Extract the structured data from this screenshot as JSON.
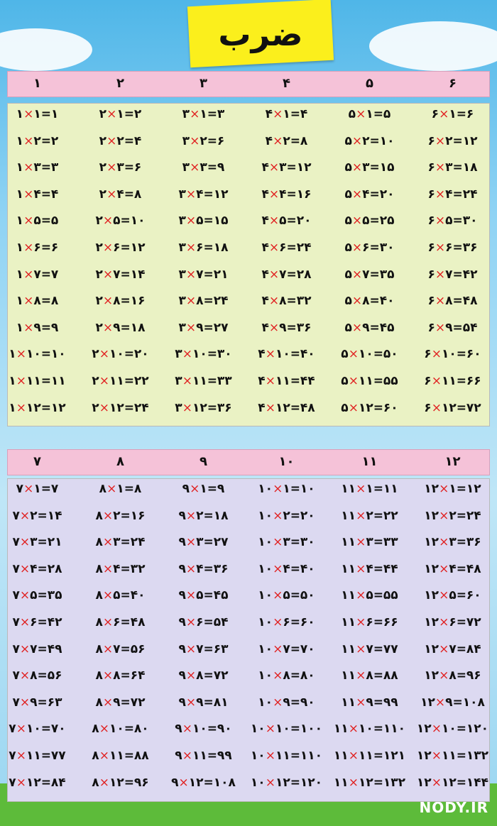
{
  "header": {
    "title": "ضرب"
  },
  "tables": [
    {
      "header": [
        "۱",
        "۲",
        "۳",
        "۴",
        "۵",
        "۶"
      ],
      "rows": [
        [
          "۱×۱=۱",
          "۲×۱=۲",
          "۳×۱=۳",
          "۴×۱=۴",
          "۵×۱=۵",
          "۶×۱=۶"
        ],
        [
          "۱×۲=۲",
          "۲×۲=۴",
          "۳×۲=۶",
          "۴×۲=۸",
          "۵×۲=۱۰",
          "۶×۲=۱۲"
        ],
        [
          "۱×۳=۳",
          "۲×۳=۶",
          "۳×۳=۹",
          "۴×۳=۱۲",
          "۵×۳=۱۵",
          "۶×۳=۱۸"
        ],
        [
          "۱×۴=۴",
          "۲×۴=۸",
          "۳×۴=۱۲",
          "۴×۴=۱۶",
          "۵×۴=۲۰",
          "۶×۴=۲۴"
        ],
        [
          "۱×۵=۵",
          "۲×۵=۱۰",
          "۳×۵=۱۵",
          "۴×۵=۲۰",
          "۵×۵=۲۵",
          "۶×۵=۳۰"
        ],
        [
          "۱×۶=۶",
          "۲×۶=۱۲",
          "۳×۶=۱۸",
          "۴×۶=۲۴",
          "۵×۶=۳۰",
          "۶×۶=۳۶"
        ],
        [
          "۱×۷=۷",
          "۲×۷=۱۴",
          "۳×۷=۲۱",
          "۴×۷=۲۸",
          "۵×۷=۳۵",
          "۶×۷=۴۲"
        ],
        [
          "۱×۸=۸",
          "۲×۸=۱۶",
          "۳×۸=۲۴",
          "۴×۸=۳۲",
          "۵×۸=۴۰",
          "۶×۸=۴۸"
        ],
        [
          "۱×۹=۹",
          "۲×۹=۱۸",
          "۳×۹=۲۷",
          "۴×۹=۳۶",
          "۵×۹=۴۵",
          "۶×۹=۵۴"
        ],
        [
          "۱×۱۰=۱۰",
          "۲×۱۰=۲۰",
          "۳×۱۰=۳۰",
          "۴×۱۰=۴۰",
          "۵×۱۰=۵۰",
          "۶×۱۰=۶۰"
        ],
        [
          "۱×۱۱=۱۱",
          "۲×۱۱=۲۲",
          "۳×۱۱=۳۳",
          "۴×۱۱=۴۴",
          "۵×۱۱=۵۵",
          "۶×۱۱=۶۶"
        ],
        [
          "۱×۱۲=۱۲",
          "۲×۱۲=۲۴",
          "۳×۱۲=۳۶",
          "۴×۱۲=۴۸",
          "۵×۱۲=۶۰",
          "۶×۱۲=۷۲"
        ]
      ]
    },
    {
      "header": [
        "۷",
        "۸",
        "۹",
        "۱۰",
        "۱۱",
        "۱۲"
      ],
      "rows": [
        [
          "۷×۱=۷",
          "۸×۱=۸",
          "۹×۱=۹",
          "۱۰×۱=۱۰",
          "۱۱×۱=۱۱",
          "۱۲×۱=۱۲"
        ],
        [
          "۷×۲=۱۴",
          "۸×۲=۱۶",
          "۹×۲=۱۸",
          "۱۰×۲=۲۰",
          "۱۱×۲=۲۲",
          "۱۲×۲=۲۴"
        ],
        [
          "۷×۳=۲۱",
          "۸×۳=۲۴",
          "۹×۳=۲۷",
          "۱۰×۳=۳۰",
          "۱۱×۳=۳۳",
          "۱۲×۳=۳۶"
        ],
        [
          "۷×۴=۲۸",
          "۸×۴=۳۲",
          "۹×۴=۳۶",
          "۱۰×۴=۴۰",
          "۱۱×۴=۴۴",
          "۱۲×۴=۴۸"
        ],
        [
          "۷×۵=۳۵",
          "۸×۵=۴۰",
          "۹×۵=۴۵",
          "۱۰×۵=۵۰",
          "۱۱×۵=۵۵",
          "۱۲×۵=۶۰"
        ],
        [
          "۷×۶=۴۲",
          "۸×۶=۴۸",
          "۹×۶=۵۴",
          "۱۰×۶=۶۰",
          "۱۱×۶=۶۶",
          "۱۲×۶=۷۲"
        ],
        [
          "۷×۷=۴۹",
          "۸×۷=۵۶",
          "۹×۷=۶۳",
          "۱۰×۷=۷۰",
          "۱۱×۷=۷۷",
          "۱۲×۷=۸۴"
        ],
        [
          "۷×۸=۵۶",
          "۸×۸=۶۴",
          "۹×۸=۷۲",
          "۱۰×۸=۸۰",
          "۱۱×۸=۸۸",
          "۱۲×۸=۹۶"
        ],
        [
          "۷×۹=۶۳",
          "۸×۹=۷۲",
          "۹×۹=۸۱",
          "۱۰×۹=۹۰",
          "۱۱×۹=۹۹",
          "۱۲×۹=۱۰۸"
        ],
        [
          "۷×۱۰=۷۰",
          "۸×۱۰=۸۰",
          "۹×۱۰=۹۰",
          "۱۰×۱۰=۱۰۰",
          "۱۱×۱۰=۱۱۰",
          "۱۲×۱۰=۱۲۰"
        ],
        [
          "۷×۱۱=۷۷",
          "۸×۱۱=۸۸",
          "۹×۱۱=۹۹",
          "۱۰×۱۱=۱۱۰",
          "۱۱×۱۱=۱۲۱",
          "۱۲×۱۱=۱۳۲"
        ],
        [
          "۷×۱۲=۸۴",
          "۸×۱۲=۹۶",
          "۹×۱۲=۱۰۸",
          "۱۰×۱۲=۱۲۰",
          "۱۱×۱۲=۱۳۲",
          "۱۲×۱۲=۱۴۴"
        ]
      ]
    }
  ],
  "watermark": "NODY.IR"
}
